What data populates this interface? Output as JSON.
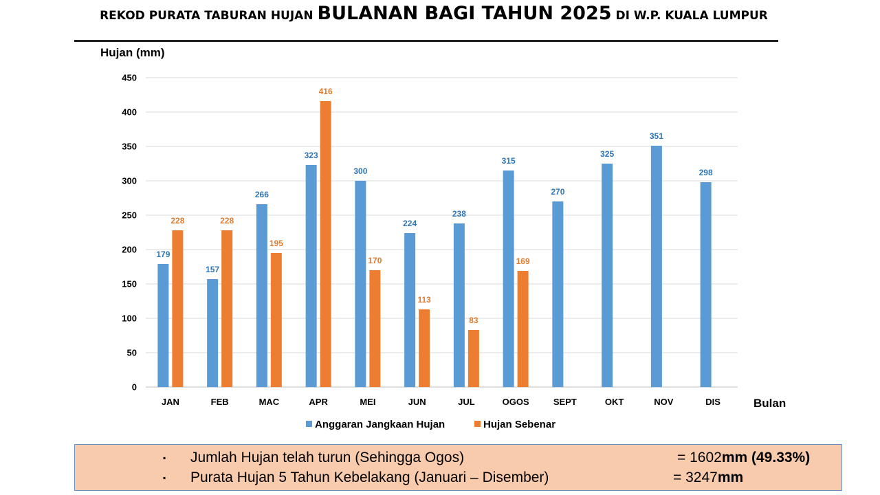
{
  "title": {
    "part1": "REKOD PURATA TABURAN HUJAN ",
    "part2": "BULANAN BAGI TAHUN 2025",
    "part3": " DI W.P. KUALA LUMPUR"
  },
  "summary": {
    "bullet": "▪",
    "row1_text": "Jumlah Hujan telah turun (Sehingga Ogos)",
    "row1_eq": "= 1602",
    "row1_bold": "mm (49.33%)",
    "row2_text": "Purata Hujan 5 Tahun Kebelakang (Januari – Disember)",
    "row2_eq": "= 3247",
    "row2_bold": "mm"
  },
  "chart_data": {
    "type": "bar",
    "title": "REKOD PURATA TABURAN HUJAN BULANAN BAGI TAHUN 2025 DI W.P. KUALA LUMPUR",
    "xlabel": "Bulan",
    "ylabel": "Hujan (mm)",
    "ylim": [
      0,
      450
    ],
    "yticks": [
      0,
      50,
      100,
      150,
      200,
      250,
      300,
      350,
      400,
      450
    ],
    "grid": true,
    "legend_position": "bottom",
    "categories": [
      "JAN",
      "FEB",
      "MAC",
      "APR",
      "MEI",
      "JUN",
      "JUL",
      "OGOS",
      "SEPT",
      "OKT",
      "NOV",
      "DIS"
    ],
    "series": [
      {
        "name": "Anggaran Jangkaan Hujan",
        "color": "#5b9bd5",
        "label_color": "#2e75b6",
        "values": [
          179,
          157,
          266,
          323,
          300,
          224,
          238,
          315,
          270,
          325,
          351,
          298
        ]
      },
      {
        "name": "Hujan Sebenar",
        "color": "#ed7d31",
        "label_color": "#e07b30",
        "values": [
          228,
          228,
          195,
          416,
          170,
          113,
          83,
          169,
          null,
          null,
          null,
          null
        ]
      }
    ]
  }
}
